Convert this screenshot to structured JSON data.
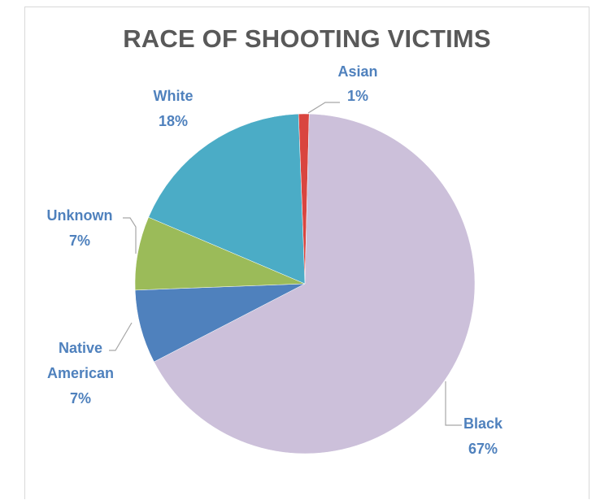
{
  "chart_data": {
    "type": "pie",
    "title": "RACE OF SHOOTING VICTIMS",
    "slices": [
      {
        "label": "Asian",
        "value": 1,
        "value_label": "1%",
        "color": "#d9453f"
      },
      {
        "label": "Black",
        "value": 67,
        "value_label": "67%",
        "color": "#ccc0da"
      },
      {
        "label": "Native American",
        "value": 7,
        "value_label": "7%",
        "color": "#4f81bd"
      },
      {
        "label": "Unknown",
        "value": 7,
        "value_label": "7%",
        "color": "#9bbb59"
      },
      {
        "label": "White",
        "value": 18,
        "value_label": "18%",
        "color": "#4bacc6"
      }
    ],
    "label_color": "#4f81bd",
    "legend": "none",
    "data_labels": "outside with leader lines"
  }
}
